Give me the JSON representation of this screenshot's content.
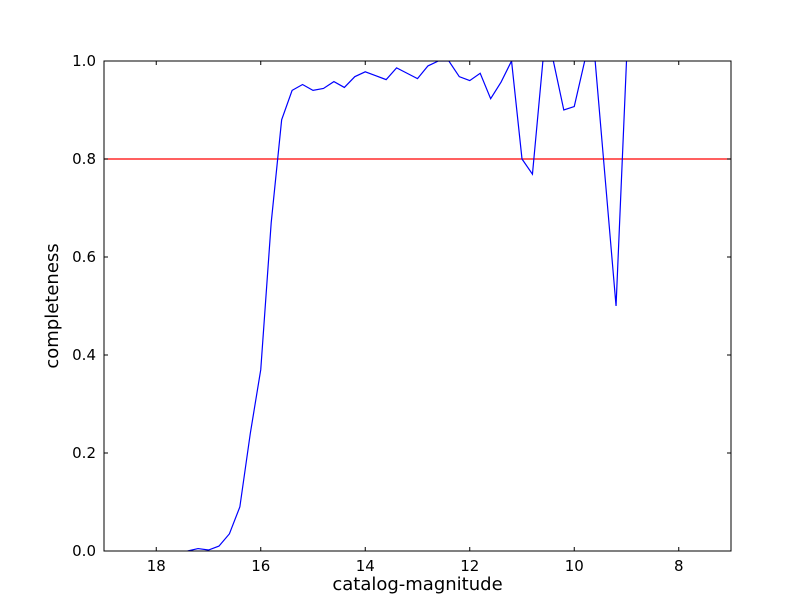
{
  "chart_data": {
    "type": "line",
    "title": "",
    "xlabel": "catalog-magnitude",
    "ylabel": "completeness",
    "xlim": [
      19.0,
      7.0
    ],
    "ylim": [
      0.0,
      1.0
    ],
    "x_inverted": true,
    "grid": false,
    "legend": "none",
    "xticks": [
      18,
      16,
      14,
      12,
      10,
      8
    ],
    "yticks": [
      0.0,
      0.2,
      0.4,
      0.6,
      0.8,
      1.0
    ],
    "xtick_labels": [
      "18",
      "16",
      "14",
      "12",
      "10",
      "8"
    ],
    "ytick_labels": [
      "0.0",
      "0.2",
      "0.4",
      "0.6",
      "0.8",
      "1.0"
    ],
    "series": [
      {
        "color": "#0000ff",
        "x": [
          17.4,
          17.2,
          17.0,
          16.8,
          16.6,
          16.4,
          16.2,
          16.0,
          15.8,
          15.6,
          15.4,
          15.2,
          15.0,
          14.8,
          14.6,
          14.4,
          14.2,
          14.0,
          13.8,
          13.6,
          13.4,
          13.2,
          13.0,
          12.8,
          12.6,
          12.4,
          12.2,
          12.0,
          11.8,
          11.6,
          11.4,
          11.2,
          11.0,
          10.8,
          10.6,
          10.4,
          10.2,
          10.0,
          9.8,
          9.6,
          9.4,
          9.2,
          9.0
        ],
        "y": [
          0.0,
          0.005,
          0.002,
          0.01,
          0.035,
          0.09,
          0.24,
          0.37,
          0.67,
          0.88,
          0.94,
          0.952,
          0.94,
          0.944,
          0.958,
          0.946,
          0.968,
          0.978,
          0.97,
          0.962,
          0.986,
          0.975,
          0.964,
          0.99,
          1.0,
          1.0,
          0.968,
          0.96,
          0.975,
          0.923,
          0.957,
          1.0,
          0.8,
          0.769,
          1.0,
          1.0,
          0.9,
          0.907,
          1.0,
          1.0,
          0.75,
          0.5,
          1.0
        ]
      }
    ],
    "reference_lines": [
      {
        "axis": "y",
        "value": 0.8,
        "color": "#ff0000"
      }
    ]
  }
}
